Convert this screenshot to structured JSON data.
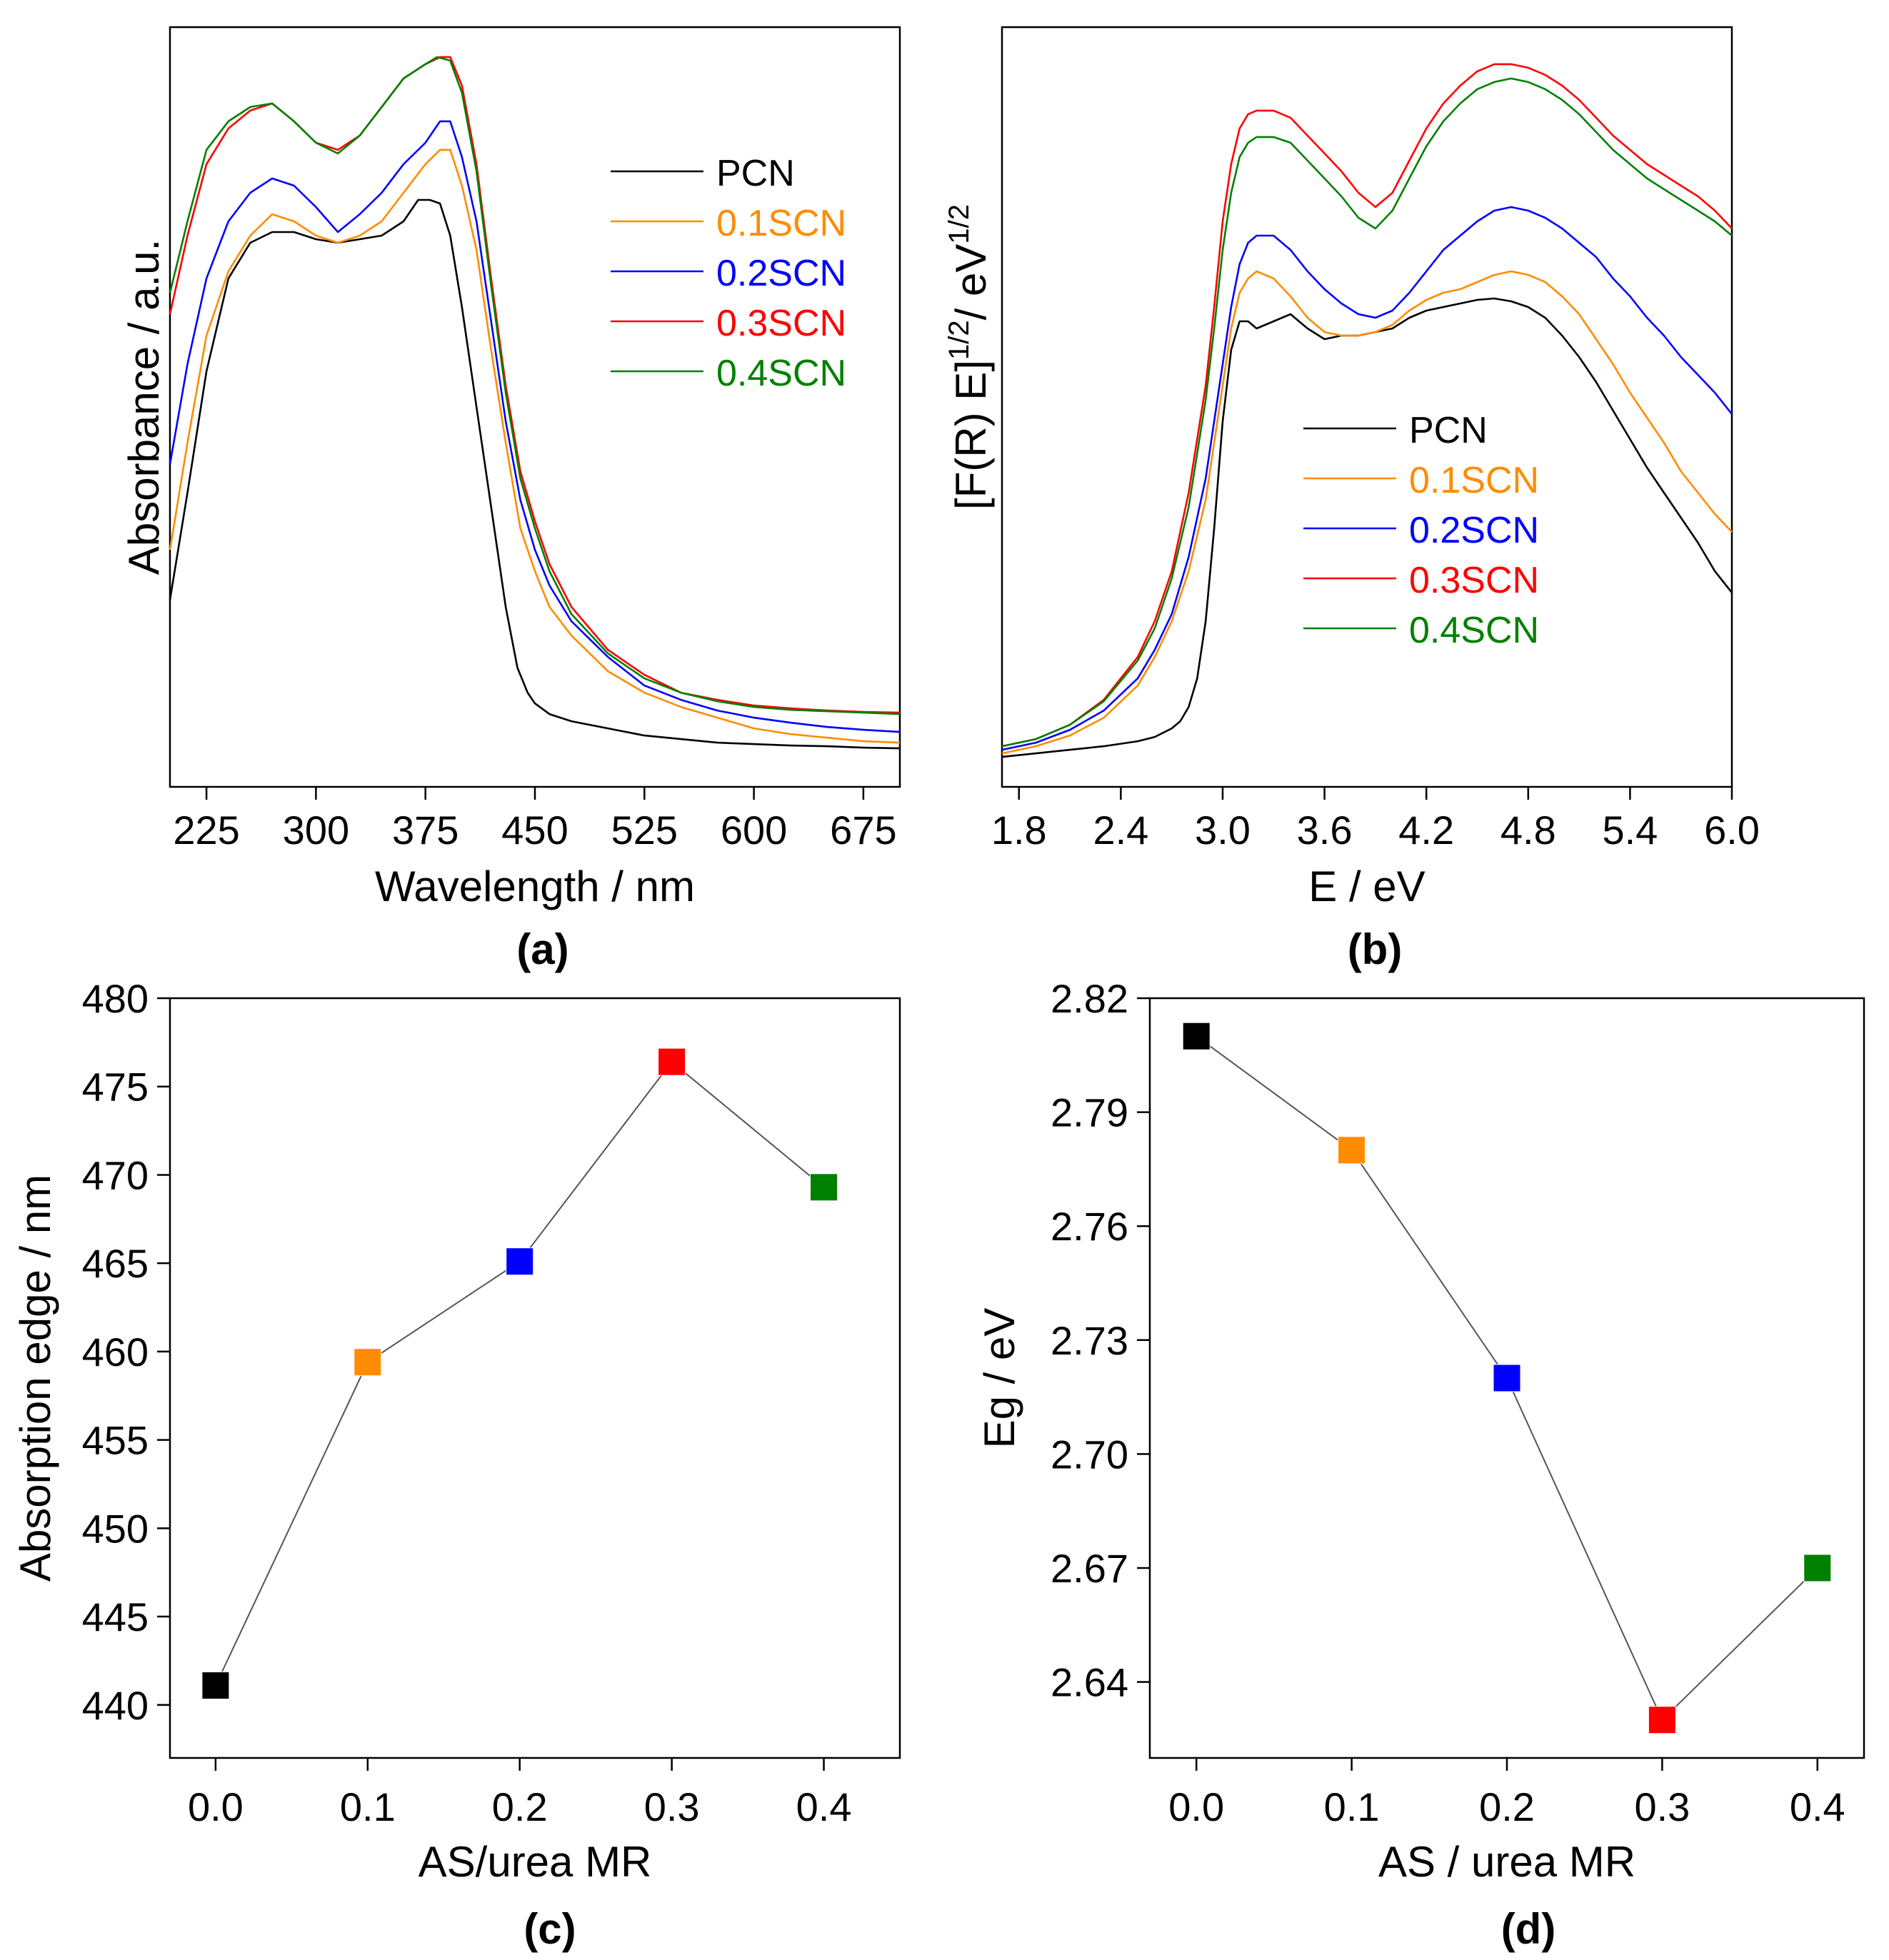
{
  "figure": {
    "series_colors": {
      "PCN": "#000000",
      "0.1SCN": "#ff8c00",
      "0.2SCN": "#0000ff",
      "0.3SCN": "#ff0000",
      "0.4SCN": "#008000"
    },
    "connector_color": "#555555"
  },
  "chart_data": [
    {
      "id": "a",
      "panel_label": "(a)",
      "type": "line",
      "title": "",
      "xlabel": "Wavelength / nm",
      "ylabel": "Absorbance / a.u.",
      "xlim": [
        200,
        700
      ],
      "ylim": [
        0,
        1
      ],
      "xticks": [
        225,
        300,
        375,
        450,
        525,
        600,
        675
      ],
      "yticks_shown": false,
      "legend": "upper-right",
      "series": [
        {
          "name": "PCN",
          "x": [
            200,
            212,
            225,
            240,
            255,
            270,
            285,
            300,
            315,
            330,
            345,
            360,
            370,
            378,
            385,
            392,
            400,
            410,
            420,
            430,
            438,
            445,
            450,
            460,
            475,
            500,
            525,
            550,
            575,
            600,
            625,
            650,
            675,
            700
          ],
          "y": [
            0.23,
            0.38,
            0.55,
            0.68,
            0.73,
            0.745,
            0.745,
            0.735,
            0.73,
            0.735,
            0.74,
            0.76,
            0.79,
            0.79,
            0.785,
            0.74,
            0.64,
            0.5,
            0.36,
            0.22,
            0.135,
            0.1,
            0.085,
            0.07,
            0.06,
            0.05,
            0.04,
            0.035,
            0.03,
            0.028,
            0.026,
            0.025,
            0.023,
            0.022
          ]
        },
        {
          "name": "0.1SCN",
          "x": [
            200,
            212,
            225,
            240,
            255,
            270,
            285,
            300,
            315,
            330,
            345,
            360,
            375,
            385,
            392,
            400,
            410,
            420,
            430,
            440,
            450,
            460,
            475,
            500,
            525,
            550,
            575,
            600,
            625,
            650,
            675,
            700
          ],
          "y": [
            0.3,
            0.45,
            0.6,
            0.69,
            0.74,
            0.77,
            0.76,
            0.74,
            0.73,
            0.74,
            0.76,
            0.8,
            0.84,
            0.86,
            0.86,
            0.81,
            0.72,
            0.58,
            0.45,
            0.33,
            0.27,
            0.22,
            0.18,
            0.13,
            0.1,
            0.08,
            0.065,
            0.05,
            0.042,
            0.037,
            0.032,
            0.03
          ]
        },
        {
          "name": "0.2SCN",
          "x": [
            200,
            212,
            225,
            240,
            255,
            270,
            285,
            300,
            315,
            330,
            345,
            360,
            375,
            385,
            392,
            400,
            410,
            420,
            430,
            440,
            450,
            460,
            475,
            500,
            525,
            550,
            575,
            600,
            625,
            650,
            675,
            700
          ],
          "y": [
            0.42,
            0.56,
            0.68,
            0.76,
            0.8,
            0.82,
            0.81,
            0.78,
            0.745,
            0.77,
            0.8,
            0.84,
            0.87,
            0.9,
            0.9,
            0.85,
            0.76,
            0.62,
            0.48,
            0.37,
            0.3,
            0.25,
            0.2,
            0.15,
            0.11,
            0.09,
            0.075,
            0.065,
            0.058,
            0.052,
            0.048,
            0.045
          ]
        },
        {
          "name": "0.3SCN",
          "x": [
            200,
            212,
            225,
            240,
            255,
            270,
            285,
            300,
            315,
            330,
            345,
            360,
            375,
            385,
            392,
            400,
            410,
            420,
            430,
            440,
            450,
            460,
            475,
            500,
            525,
            550,
            575,
            600,
            625,
            650,
            675,
            700
          ],
          "y": [
            0.63,
            0.74,
            0.84,
            0.89,
            0.915,
            0.925,
            0.9,
            0.87,
            0.86,
            0.88,
            0.92,
            0.96,
            0.98,
            0.99,
            0.99,
            0.95,
            0.84,
            0.68,
            0.53,
            0.41,
            0.34,
            0.28,
            0.22,
            0.16,
            0.125,
            0.1,
            0.09,
            0.082,
            0.078,
            0.075,
            0.073,
            0.072
          ]
        },
        {
          "name": "0.4SCN",
          "x": [
            200,
            212,
            225,
            240,
            255,
            270,
            285,
            300,
            315,
            330,
            345,
            360,
            375,
            383,
            392,
            400,
            410,
            420,
            430,
            440,
            450,
            460,
            475,
            500,
            525,
            550,
            575,
            600,
            625,
            650,
            675,
            700
          ],
          "y": [
            0.66,
            0.76,
            0.86,
            0.9,
            0.92,
            0.925,
            0.9,
            0.87,
            0.855,
            0.88,
            0.92,
            0.96,
            0.98,
            0.99,
            0.985,
            0.94,
            0.83,
            0.67,
            0.52,
            0.4,
            0.33,
            0.27,
            0.21,
            0.155,
            0.12,
            0.1,
            0.088,
            0.08,
            0.076,
            0.074,
            0.072,
            0.07
          ]
        }
      ]
    },
    {
      "id": "b",
      "panel_label": "(b)",
      "type": "line",
      "title": "",
      "xlabel": "E / eV",
      "ylabel": "[F(R) E]",
      "ylabel_sup1": "1/2",
      "ylabel_mid": "/ eV",
      "ylabel_sup2": "1/2",
      "xlim": [
        1.7,
        6.0
      ],
      "ylim": [
        0,
        1
      ],
      "xticks": [
        1.8,
        2.4,
        3.0,
        3.6,
        4.2,
        4.8,
        5.4,
        6.0
      ],
      "yticks_shown": false,
      "legend": "center-right",
      "series": [
        {
          "name": "PCN",
          "x": [
            1.7,
            1.9,
            2.1,
            2.3,
            2.5,
            2.6,
            2.7,
            2.75,
            2.8,
            2.85,
            2.9,
            2.95,
            3.0,
            3.05,
            3.1,
            3.15,
            3.2,
            3.3,
            3.4,
            3.5,
            3.6,
            3.7,
            3.8,
            3.9,
            4.0,
            4.1,
            4.2,
            4.3,
            4.4,
            4.5,
            4.6,
            4.7,
            4.8,
            4.9,
            5.0,
            5.1,
            5.2,
            5.3,
            5.4,
            5.5,
            5.6,
            5.7,
            5.8,
            5.9,
            6.0
          ],
          "y": [
            0.01,
            0.015,
            0.02,
            0.025,
            0.032,
            0.038,
            0.05,
            0.06,
            0.08,
            0.12,
            0.2,
            0.33,
            0.48,
            0.58,
            0.62,
            0.62,
            0.61,
            0.62,
            0.63,
            0.61,
            0.595,
            0.6,
            0.6,
            0.605,
            0.61,
            0.625,
            0.635,
            0.64,
            0.645,
            0.65,
            0.652,
            0.648,
            0.64,
            0.625,
            0.6,
            0.57,
            0.535,
            0.495,
            0.455,
            0.415,
            0.38,
            0.345,
            0.31,
            0.27,
            0.24
          ]
        },
        {
          "name": "0.1SCN",
          "x": [
            1.7,
            1.9,
            2.1,
            2.3,
            2.5,
            2.6,
            2.7,
            2.8,
            2.9,
            2.95,
            3.0,
            3.05,
            3.1,
            3.15,
            3.2,
            3.3,
            3.4,
            3.5,
            3.6,
            3.7,
            3.8,
            3.9,
            4.0,
            4.1,
            4.2,
            4.3,
            4.4,
            4.5,
            4.6,
            4.7,
            4.8,
            4.9,
            5.0,
            5.1,
            5.2,
            5.3,
            5.4,
            5.5,
            5.6,
            5.7,
            5.8,
            5.9,
            6.0
          ],
          "y": [
            0.015,
            0.025,
            0.04,
            0.065,
            0.11,
            0.15,
            0.2,
            0.27,
            0.37,
            0.45,
            0.53,
            0.61,
            0.66,
            0.68,
            0.69,
            0.68,
            0.655,
            0.625,
            0.605,
            0.6,
            0.6,
            0.605,
            0.615,
            0.635,
            0.65,
            0.66,
            0.665,
            0.675,
            0.685,
            0.69,
            0.685,
            0.675,
            0.655,
            0.63,
            0.595,
            0.56,
            0.52,
            0.485,
            0.45,
            0.41,
            0.38,
            0.35,
            0.325
          ]
        },
        {
          "name": "0.2SCN",
          "x": [
            1.7,
            1.9,
            2.1,
            2.3,
            2.5,
            2.6,
            2.7,
            2.8,
            2.9,
            2.95,
            3.0,
            3.05,
            3.1,
            3.15,
            3.2,
            3.3,
            3.4,
            3.5,
            3.6,
            3.7,
            3.8,
            3.9,
            4.0,
            4.1,
            4.2,
            4.3,
            4.4,
            4.5,
            4.6,
            4.7,
            4.8,
            4.9,
            5.0,
            5.1,
            5.2,
            5.3,
            5.4,
            5.5,
            5.6,
            5.7,
            5.8,
            5.9,
            6.0
          ],
          "y": [
            0.02,
            0.03,
            0.048,
            0.075,
            0.12,
            0.16,
            0.21,
            0.29,
            0.4,
            0.48,
            0.56,
            0.64,
            0.7,
            0.73,
            0.74,
            0.74,
            0.72,
            0.69,
            0.665,
            0.645,
            0.63,
            0.625,
            0.635,
            0.66,
            0.69,
            0.72,
            0.74,
            0.76,
            0.775,
            0.78,
            0.775,
            0.765,
            0.75,
            0.73,
            0.71,
            0.68,
            0.655,
            0.625,
            0.6,
            0.57,
            0.545,
            0.52,
            0.49
          ]
        },
        {
          "name": "0.3SCN",
          "x": [
            1.7,
            1.9,
            2.1,
            2.3,
            2.5,
            2.6,
            2.7,
            2.8,
            2.9,
            2.95,
            3.0,
            3.05,
            3.1,
            3.15,
            3.2,
            3.3,
            3.4,
            3.5,
            3.6,
            3.7,
            3.8,
            3.9,
            4.0,
            4.1,
            4.2,
            4.3,
            4.4,
            4.5,
            4.6,
            4.7,
            4.8,
            4.9,
            5.0,
            5.1,
            5.2,
            5.3,
            5.4,
            5.5,
            5.6,
            5.7,
            5.8,
            5.9,
            6.0
          ],
          "y": [
            0.025,
            0.035,
            0.055,
            0.09,
            0.15,
            0.2,
            0.27,
            0.38,
            0.53,
            0.64,
            0.76,
            0.84,
            0.89,
            0.91,
            0.915,
            0.915,
            0.905,
            0.88,
            0.855,
            0.83,
            0.8,
            0.78,
            0.8,
            0.845,
            0.89,
            0.925,
            0.95,
            0.97,
            0.98,
            0.98,
            0.975,
            0.965,
            0.95,
            0.93,
            0.905,
            0.88,
            0.86,
            0.84,
            0.825,
            0.81,
            0.795,
            0.775,
            0.75
          ]
        },
        {
          "name": "0.4SCN",
          "x": [
            1.7,
            1.9,
            2.1,
            2.3,
            2.5,
            2.6,
            2.7,
            2.8,
            2.9,
            2.95,
            3.0,
            3.05,
            3.1,
            3.15,
            3.2,
            3.3,
            3.4,
            3.5,
            3.6,
            3.7,
            3.8,
            3.9,
            4.0,
            4.1,
            4.2,
            4.3,
            4.4,
            4.5,
            4.6,
            4.7,
            4.8,
            4.9,
            5.0,
            5.1,
            5.2,
            5.3,
            5.4,
            5.5,
            5.6,
            5.7,
            5.8,
            5.9,
            6.0
          ],
          "y": [
            0.025,
            0.035,
            0.055,
            0.088,
            0.145,
            0.19,
            0.26,
            0.36,
            0.51,
            0.61,
            0.72,
            0.8,
            0.85,
            0.87,
            0.878,
            0.878,
            0.87,
            0.845,
            0.82,
            0.795,
            0.765,
            0.75,
            0.775,
            0.82,
            0.865,
            0.9,
            0.925,
            0.945,
            0.955,
            0.96,
            0.955,
            0.945,
            0.93,
            0.91,
            0.885,
            0.86,
            0.84,
            0.82,
            0.805,
            0.79,
            0.775,
            0.76,
            0.74
          ]
        }
      ]
    },
    {
      "id": "c",
      "panel_label": "(c)",
      "type": "scatter",
      "title": "",
      "xlabel": "AS/urea MR",
      "ylabel": "Absorption edge / nm",
      "xlim": [
        -0.03,
        0.45
      ],
      "ylim": [
        437,
        480
      ],
      "xticks": [
        "0.0",
        "0.1",
        "0.2",
        "0.3",
        "0.4"
      ],
      "yticks": [
        "440",
        "445",
        "450",
        "455",
        "460",
        "465",
        "470",
        "475",
        "480"
      ],
      "x": [
        0.0,
        0.1,
        0.2,
        0.3,
        0.4
      ],
      "values": [
        441.1,
        459.4,
        465.1,
        476.4,
        469.3
      ],
      "point_series": [
        "PCN",
        "0.1SCN",
        "0.2SCN",
        "0.3SCN",
        "0.4SCN"
      ]
    },
    {
      "id": "d",
      "panel_label": "(d)",
      "type": "scatter",
      "title": "",
      "xlabel": "AS / urea MR",
      "ylabel": "Eg / eV",
      "xlim": [
        -0.03,
        0.43
      ],
      "ylim": [
        2.62,
        2.82
      ],
      "xticks": [
        "0.0",
        "0.1",
        "0.2",
        "0.3",
        "0.4"
      ],
      "yticks": [
        "2.64",
        "2.67",
        "2.70",
        "2.73",
        "2.76",
        "2.79",
        "2.82"
      ],
      "x": [
        0.0,
        0.1,
        0.2,
        0.3,
        0.4
      ],
      "values": [
        2.81,
        2.78,
        2.72,
        2.63,
        2.67
      ],
      "point_series": [
        "PCN",
        "0.1SCN",
        "0.2SCN",
        "0.3SCN",
        "0.4SCN"
      ]
    }
  ]
}
